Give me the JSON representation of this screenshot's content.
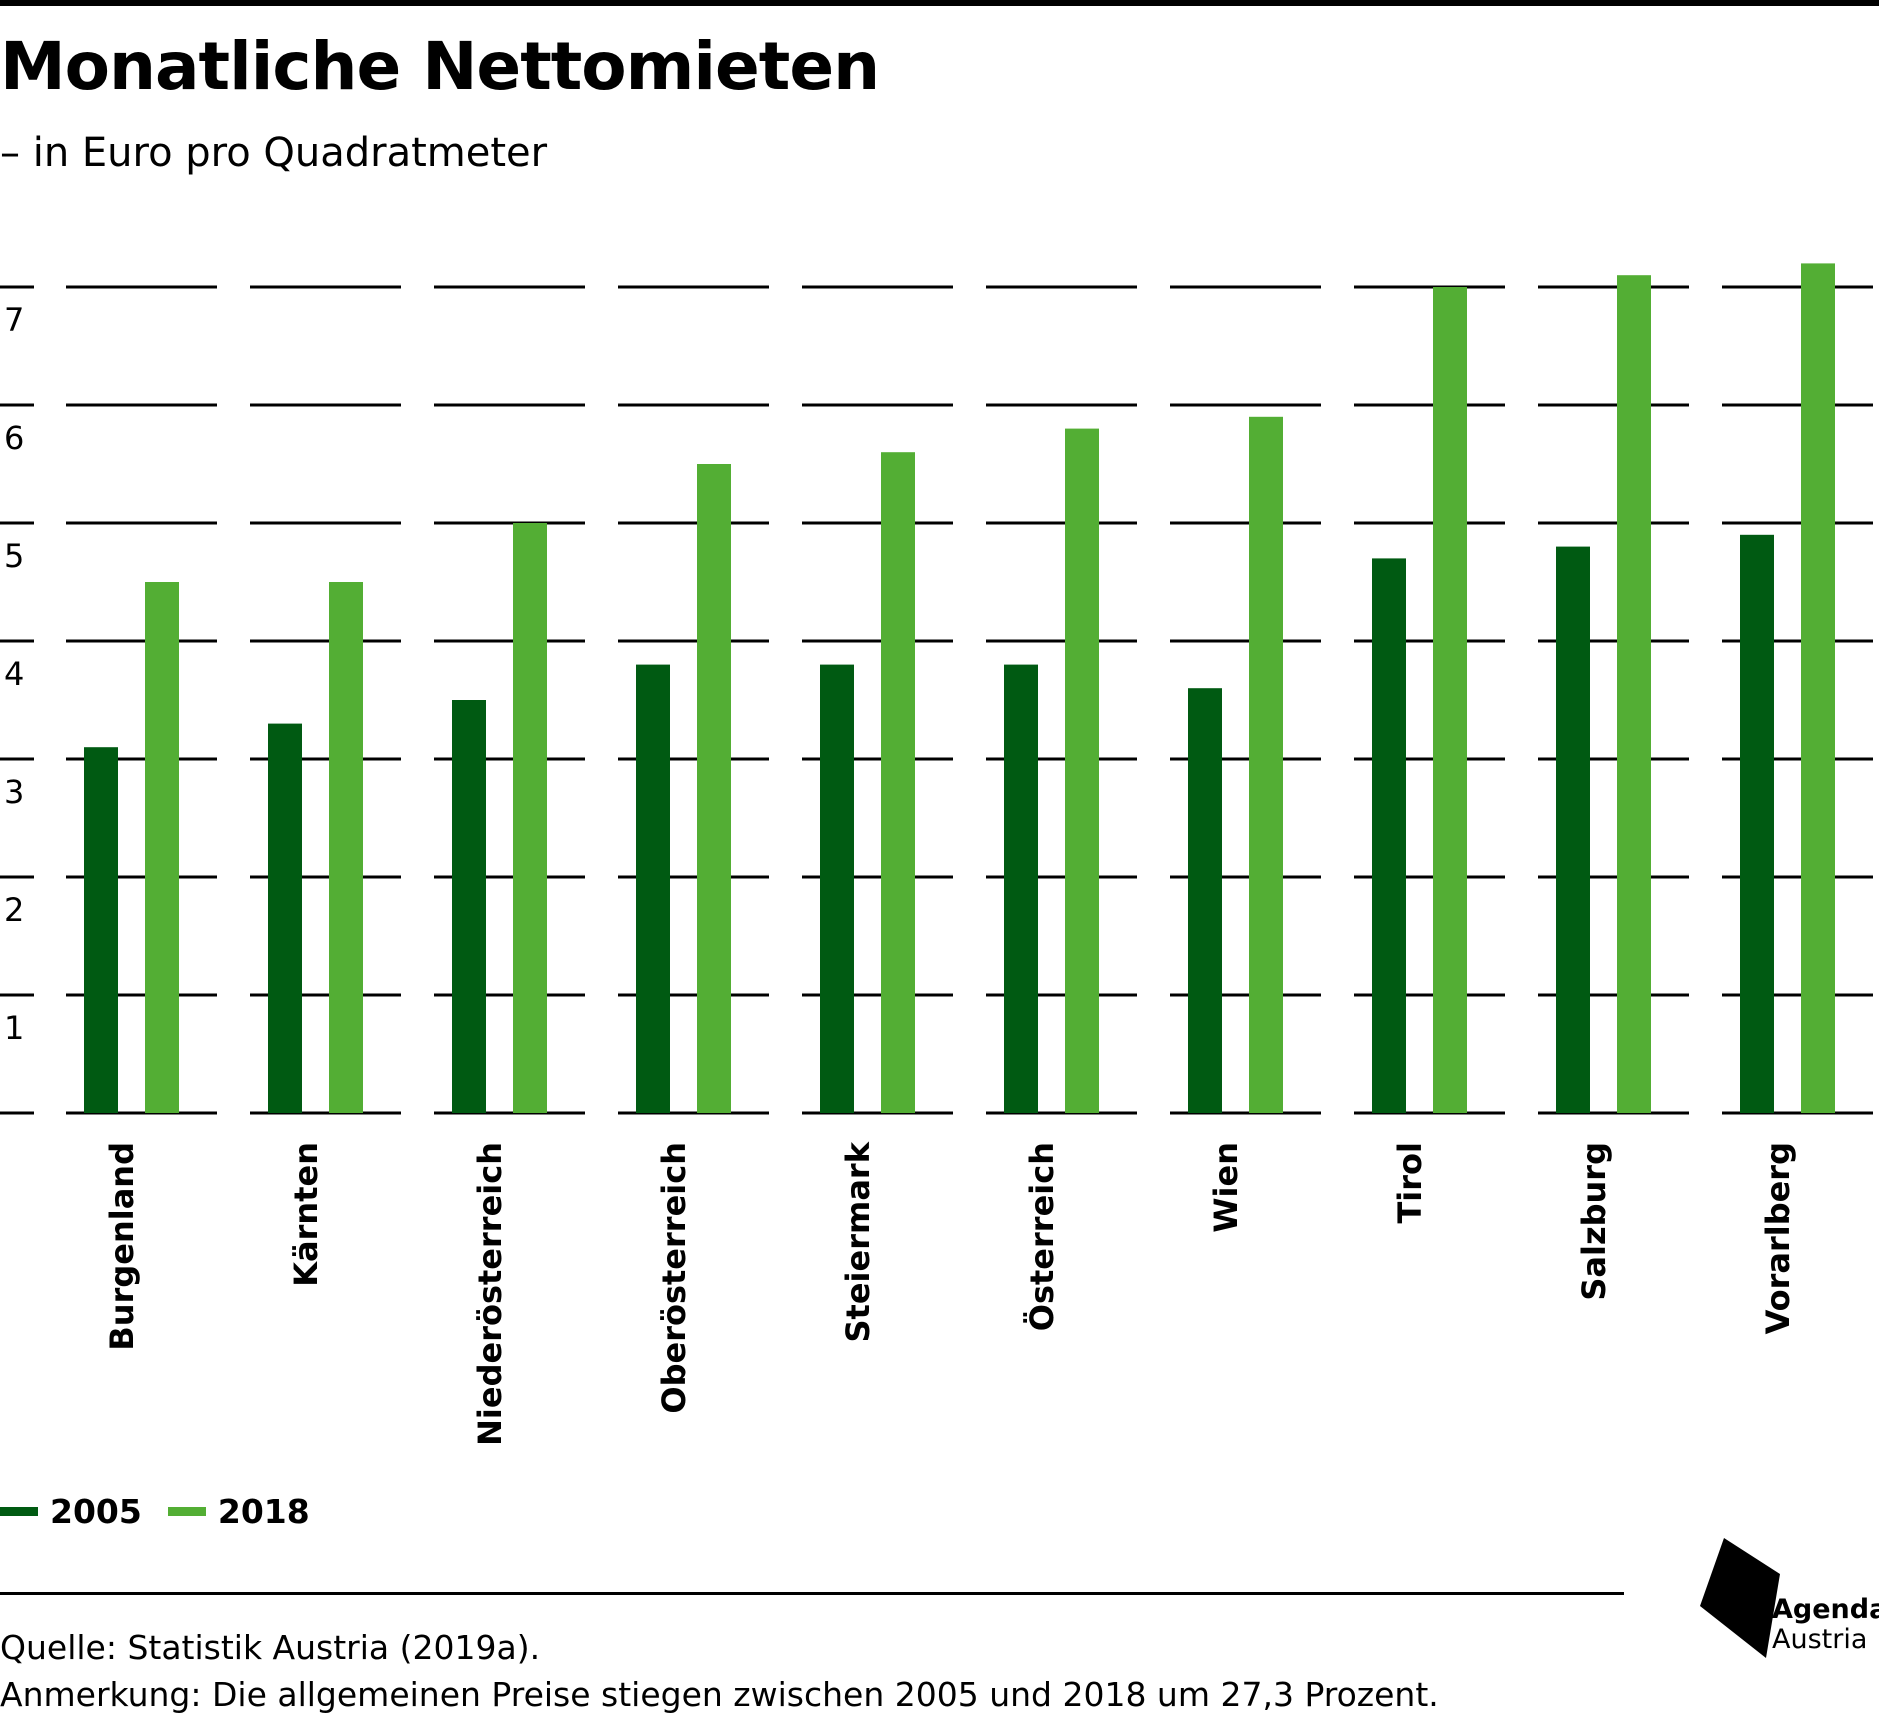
{
  "header": {
    "title": "Monatliche Nettomieten",
    "subtitle": "– in Euro pro Quadratmeter"
  },
  "chart_data": {
    "type": "bar",
    "title": "Monatliche Nettomieten",
    "subtitle": "– in Euro pro Quadratmeter",
    "xlabel": "",
    "ylabel": "",
    "ylim": [
      0,
      7
    ],
    "yticks": [
      1,
      2,
      3,
      4,
      5,
      6,
      7
    ],
    "grid": true,
    "legend_position": "bottom-left",
    "categories": [
      "Burgenland",
      "Kärnten",
      "Niederösterreich",
      "Oberösterreich",
      "Steiermark",
      "Österreich",
      "Wien",
      "Tirol",
      "Salzburg",
      "Vorarlberg"
    ],
    "series": [
      {
        "name": "2005",
        "color": "#005a12",
        "values": [
          3.1,
          3.3,
          3.5,
          3.8,
          3.8,
          3.8,
          3.6,
          4.7,
          4.8,
          4.9
        ]
      },
      {
        "name": "2018",
        "color": "#53ae34",
        "values": [
          4.5,
          4.5,
          5.0,
          5.5,
          5.6,
          5.8,
          5.9,
          7.0,
          7.1,
          7.2
        ]
      }
    ]
  },
  "footer": {
    "source": "Quelle: Statistik Austria (2019a).",
    "note": "Anmerkung: Die allgemeinen Preise stiegen zwischen 2005 und 2018 um 27,3 Prozent."
  },
  "logo": {
    "line1": "Agenda",
    "line2": "Austria"
  }
}
